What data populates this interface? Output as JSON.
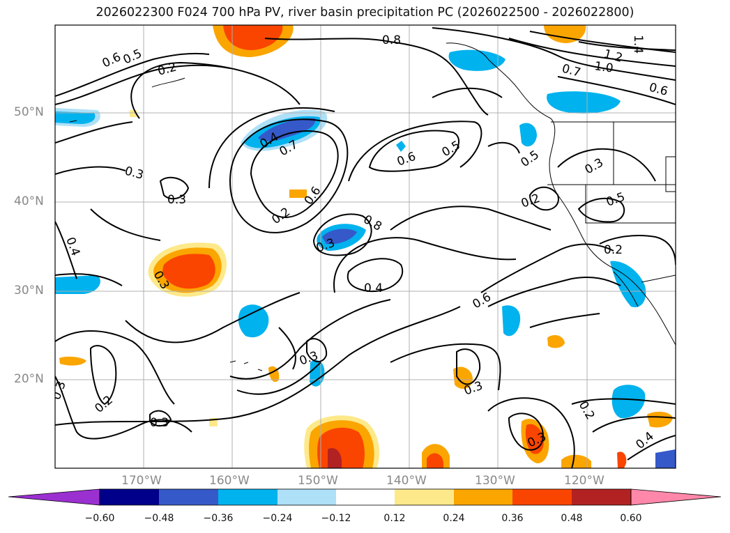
{
  "title": "2026022300 F024 700 hPa PV, river basin precipitation PC (2026022500 - 2026022800)",
  "lat_labels": [
    "50°N",
    "40°N",
    "30°N",
    "20°N"
  ],
  "lon_labels": [
    "170°W",
    "160°W",
    "150°W",
    "140°W",
    "130°W",
    "120°W"
  ],
  "colorbar": {
    "ticks": [
      "−0.60",
      "−0.48",
      "−0.36",
      "−0.24",
      "−0.12",
      "0.12",
      "0.24",
      "0.36",
      "0.48",
      "0.60"
    ],
    "colors": [
      "#9b30d0",
      "#00008b",
      "#3559c9",
      "#00b2ee",
      "#aee0f8",
      "#ffffff",
      "#fde98a",
      "#fba500",
      "#fa4500",
      "#b22222",
      "#ff88aa"
    ]
  },
  "contour_labels": [
    "0.6",
    "0.5",
    "0.2",
    "0.8",
    "0.7",
    "1.0",
    "1.2",
    "1.4",
    "0.6",
    "0.3",
    "0.3",
    "0.4",
    "0.7",
    "0.6",
    "0.5",
    "0.5",
    "0.3",
    "0.6",
    "0.2",
    "0.8",
    "0.4",
    "0.3",
    "0.4",
    "0.6",
    "0.2",
    "0.3",
    "0.5",
    "0.2",
    "0.3",
    "0.3",
    "0.2",
    "0.3",
    "0.3",
    "0.2",
    "0.3",
    "0.4"
  ]
}
